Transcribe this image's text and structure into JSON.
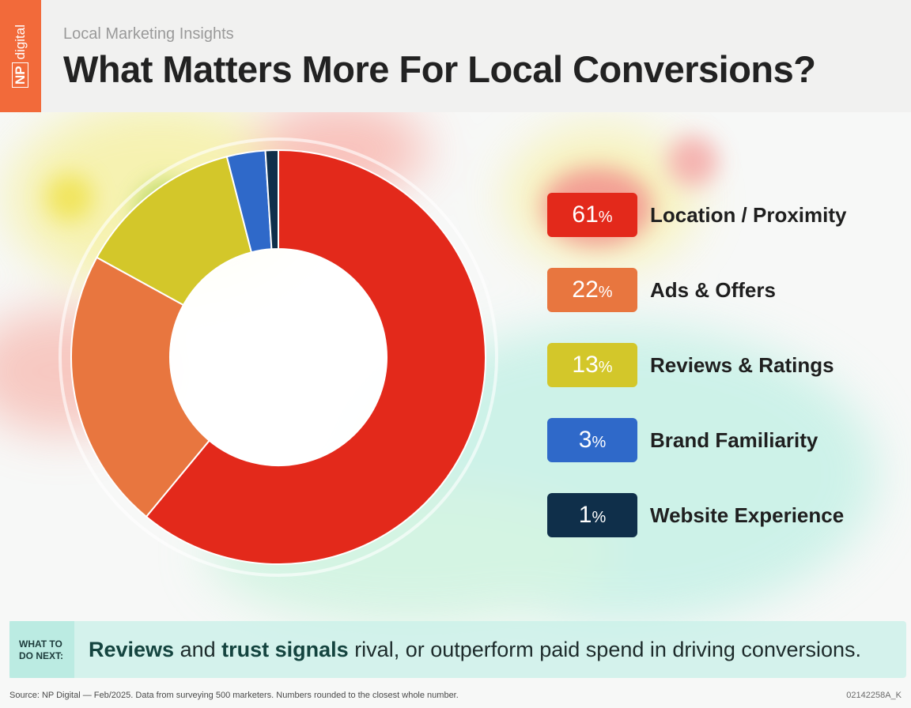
{
  "header": {
    "brand_np": "NP",
    "brand_name": "digital",
    "subtitle": "Local Marketing Insights",
    "title": "What Matters More For Local Conversions?"
  },
  "chart_data": {
    "type": "pie",
    "variant": "donut",
    "title": "What Matters More For Local Conversions?",
    "unit": "%",
    "categories": [
      "Location / Proximity",
      "Ads & Offers",
      "Reviews & Ratings",
      "Brand Familiarity",
      "Website Experience"
    ],
    "values": [
      61,
      22,
      13,
      3,
      1
    ],
    "colors": [
      "#e3291b",
      "#e8763f",
      "#d3c72a",
      "#2f69c9",
      "#0f2f4a"
    ]
  },
  "legend": [
    {
      "value": "61",
      "pct": "%",
      "label": "Location / Proximity"
    },
    {
      "value": "22",
      "pct": "%",
      "label": "Ads & Offers"
    },
    {
      "value": "13",
      "pct": "%",
      "label": "Reviews & Ratings"
    },
    {
      "value": "3",
      "pct": "%",
      "label": "Brand Familiarity"
    },
    {
      "value": "1",
      "pct": "%",
      "label": "Website Experience"
    }
  ],
  "tip": {
    "tag_line1": "WHAT TO",
    "tag_line2": "DO NEXT:",
    "bold1": "Reviews",
    "text1": " and ",
    "bold2": "trust signals",
    "text2": " rival, or outperform paid spend in driving conversions."
  },
  "footer": {
    "source": "Source: NP Digital — Feb/2025. Data from surveying 500 marketers. Numbers rounded to the closest whole number.",
    "code": "02142258A_K"
  }
}
